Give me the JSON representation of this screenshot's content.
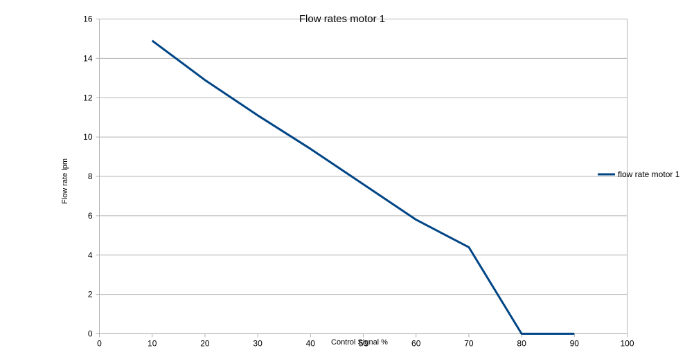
{
  "chart_data": {
    "type": "line",
    "title": "Flow rates motor 1",
    "xlabel": "Control Signal %",
    "ylabel": "Flow rate lpm",
    "xlim": [
      0,
      100
    ],
    "ylim": [
      0,
      16
    ],
    "x_ticks": [
      0,
      10,
      20,
      30,
      40,
      50,
      60,
      70,
      80,
      90,
      100
    ],
    "y_ticks": [
      0,
      2,
      4,
      6,
      8,
      10,
      12,
      14,
      16
    ],
    "grid": "horizontal",
    "legend": "right",
    "series": [
      {
        "name": "flow rate motor 1",
        "color": "#004586",
        "x": [
          10,
          20,
          30,
          40,
          50,
          60,
          70,
          80,
          90
        ],
        "y": [
          14.9,
          12.9,
          11.1,
          9.4,
          7.6,
          5.8,
          4.4,
          0,
          0
        ]
      }
    ]
  }
}
